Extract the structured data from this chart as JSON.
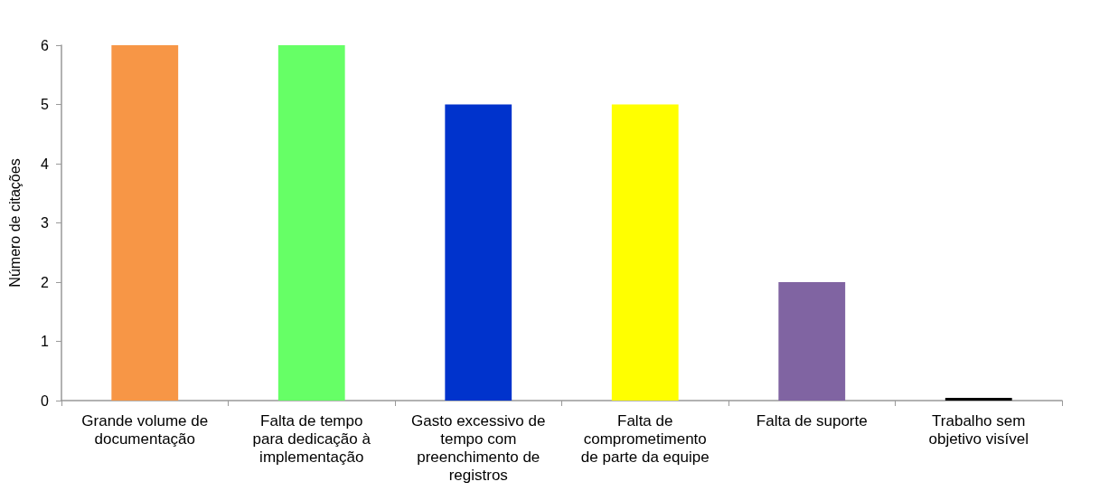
{
  "chart_data": {
    "type": "bar",
    "ylabel": "Número de citações",
    "categories": [
      "Grande volume de documentação",
      "Falta de tempo para dedicação à implementação",
      "Gasto excessivo de tempo com preenchimento de registros",
      "Falta de comprometimento de parte da equipe",
      "Falta de suporte",
      "Trabalho sem objetivo visível"
    ],
    "values": [
      6,
      6,
      5,
      5,
      2,
      0
    ],
    "colors": [
      "#f79646",
      "#66ff66",
      "#0033cc",
      "#ffff00",
      "#8064a2",
      "#000000"
    ],
    "ylim": [
      0,
      6
    ],
    "yticks": [
      0,
      1,
      2,
      3,
      4,
      5,
      6
    ]
  }
}
